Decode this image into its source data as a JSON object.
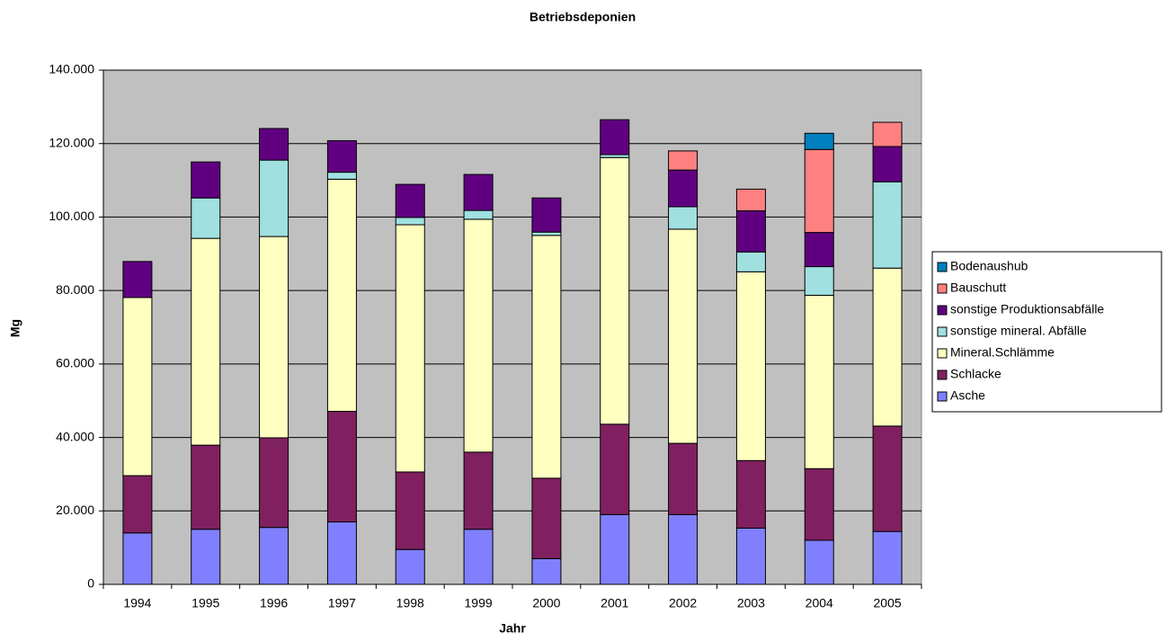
{
  "chart_data": {
    "type": "stacked_bar",
    "title": "Betriebsdeponien",
    "x_label": "Jahr",
    "y_label": "Mg",
    "categories": [
      "1994",
      "1995",
      "1996",
      "1997",
      "1998",
      "1999",
      "2000",
      "2001",
      "2002",
      "2003",
      "2004",
      "2005"
    ],
    "series": [
      {
        "name": "Asche",
        "color": "#8080ff",
        "values": [
          14000,
          15000,
          15500,
          17000,
          9500,
          15000,
          7000,
          19000,
          19000,
          15300,
          12000,
          14400
        ]
      },
      {
        "name": "Schlacke",
        "color": "#802060",
        "values": [
          15600,
          22900,
          24400,
          30100,
          21100,
          21000,
          21900,
          24600,
          19400,
          18400,
          19500,
          28700
        ]
      },
      {
        "name": "Mineral.Schlämme",
        "color": "#ffffc0",
        "values": [
          48500,
          56300,
          54800,
          63200,
          67300,
          63400,
          66100,
          72600,
          58300,
          51400,
          47200,
          43000
        ]
      },
      {
        "name": "sonstige mineral. Abfälle",
        "color": "#a0e0e0",
        "values": [
          0,
          11000,
          20800,
          1900,
          2000,
          2400,
          900,
          800,
          6100,
          5400,
          7800,
          23500
        ]
      },
      {
        "name": "sonstige Produktionsabfälle",
        "color": "#600080",
        "values": [
          9800,
          9800,
          8600,
          8600,
          9000,
          9800,
          9300,
          9500,
          10000,
          11200,
          9300,
          9600
        ]
      },
      {
        "name": "Bauschutt",
        "color": "#ff8080",
        "values": [
          0,
          0,
          0,
          0,
          0,
          0,
          0,
          0,
          5200,
          5900,
          22600,
          6600
        ]
      },
      {
        "name": "Bodenaushub",
        "color": "#0080c0",
        "values": [
          0,
          0,
          0,
          0,
          0,
          0,
          0,
          0,
          0,
          0,
          4400,
          0
        ]
      }
    ],
    "ylim": [
      0,
      140000
    ],
    "yticks": [
      0,
      {
        "value": 20000,
        "label": "20.000"
      },
      {
        "value": 40000,
        "label": "40.000"
      },
      {
        "value": 60000,
        "label": "60.000"
      },
      {
        "value": 80000,
        "label": "80.000"
      },
      {
        "value": 100000,
        "label": "100.000"
      },
      {
        "value": 120000,
        "label": "120.000"
      },
      {
        "value": 140000,
        "label": "140.000"
      }
    ],
    "grid": true,
    "legend": "right",
    "plot_background": "#c0c0c0"
  }
}
